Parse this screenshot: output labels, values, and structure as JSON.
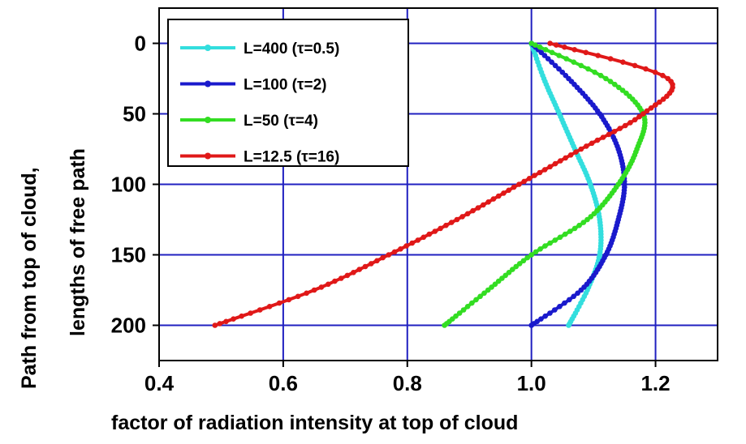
{
  "chart_data": {
    "type": "line",
    "title": "",
    "xlabel": "factor of radiation intensity at top of cloud",
    "ylabel_line1": "Path from top of cloud,",
    "ylabel_line2": "lengths of free path",
    "xlim": [
      0.4,
      1.3
    ],
    "ylim": [
      225,
      -25
    ],
    "y_inverted": true,
    "grid": true,
    "x_ticks": [
      {
        "value": 0.4,
        "label": "0.4"
      },
      {
        "value": 0.6,
        "label": "0.6"
      },
      {
        "value": 0.8,
        "label": "0.8"
      },
      {
        "value": 1.0,
        "label": "1.0"
      },
      {
        "value": 1.2,
        "label": "1.2"
      }
    ],
    "y_ticks": [
      {
        "value": 0,
        "label": "0"
      },
      {
        "value": 50,
        "label": "50"
      },
      {
        "value": 100,
        "label": "100"
      },
      {
        "value": 150,
        "label": "150"
      },
      {
        "value": 200,
        "label": "200"
      }
    ],
    "legend_position": "top-left",
    "series": [
      {
        "name": "L=400 (τ=0.5)",
        "color": "#33dede",
        "points": [
          [
            1.0,
            0
          ],
          [
            1.02,
            25
          ],
          [
            1.045,
            50
          ],
          [
            1.07,
            75
          ],
          [
            1.095,
            100
          ],
          [
            1.11,
            125
          ],
          [
            1.11,
            150
          ],
          [
            1.09,
            175
          ],
          [
            1.06,
            200
          ]
        ]
      },
      {
        "name": "L=100 (τ=2)",
        "color": "#1a1acc",
        "points": [
          [
            1.0,
            0
          ],
          [
            1.06,
            25
          ],
          [
            1.11,
            50
          ],
          [
            1.14,
            75
          ],
          [
            1.15,
            100
          ],
          [
            1.14,
            125
          ],
          [
            1.12,
            150
          ],
          [
            1.08,
            175
          ],
          [
            1.0,
            200
          ]
        ]
      },
      {
        "name": "L=50 (τ=4)",
        "color": "#33dd22",
        "points": [
          [
            1.0,
            0
          ],
          [
            1.12,
            25
          ],
          [
            1.18,
            50
          ],
          [
            1.17,
            75
          ],
          [
            1.14,
            100
          ],
          [
            1.09,
            125
          ],
          [
            1.0,
            150
          ],
          [
            0.93,
            175
          ],
          [
            0.86,
            200
          ]
        ]
      },
      {
        "name": "L=12.5 (τ=16)",
        "color": "#e01818",
        "points": [
          [
            1.03,
            0
          ],
          [
            1.22,
            25
          ],
          [
            1.18,
            50
          ],
          [
            1.08,
            75
          ],
          [
            0.98,
            100
          ],
          [
            0.88,
            125
          ],
          [
            0.77,
            150
          ],
          [
            0.65,
            175
          ],
          [
            0.49,
            200
          ]
        ]
      }
    ]
  }
}
